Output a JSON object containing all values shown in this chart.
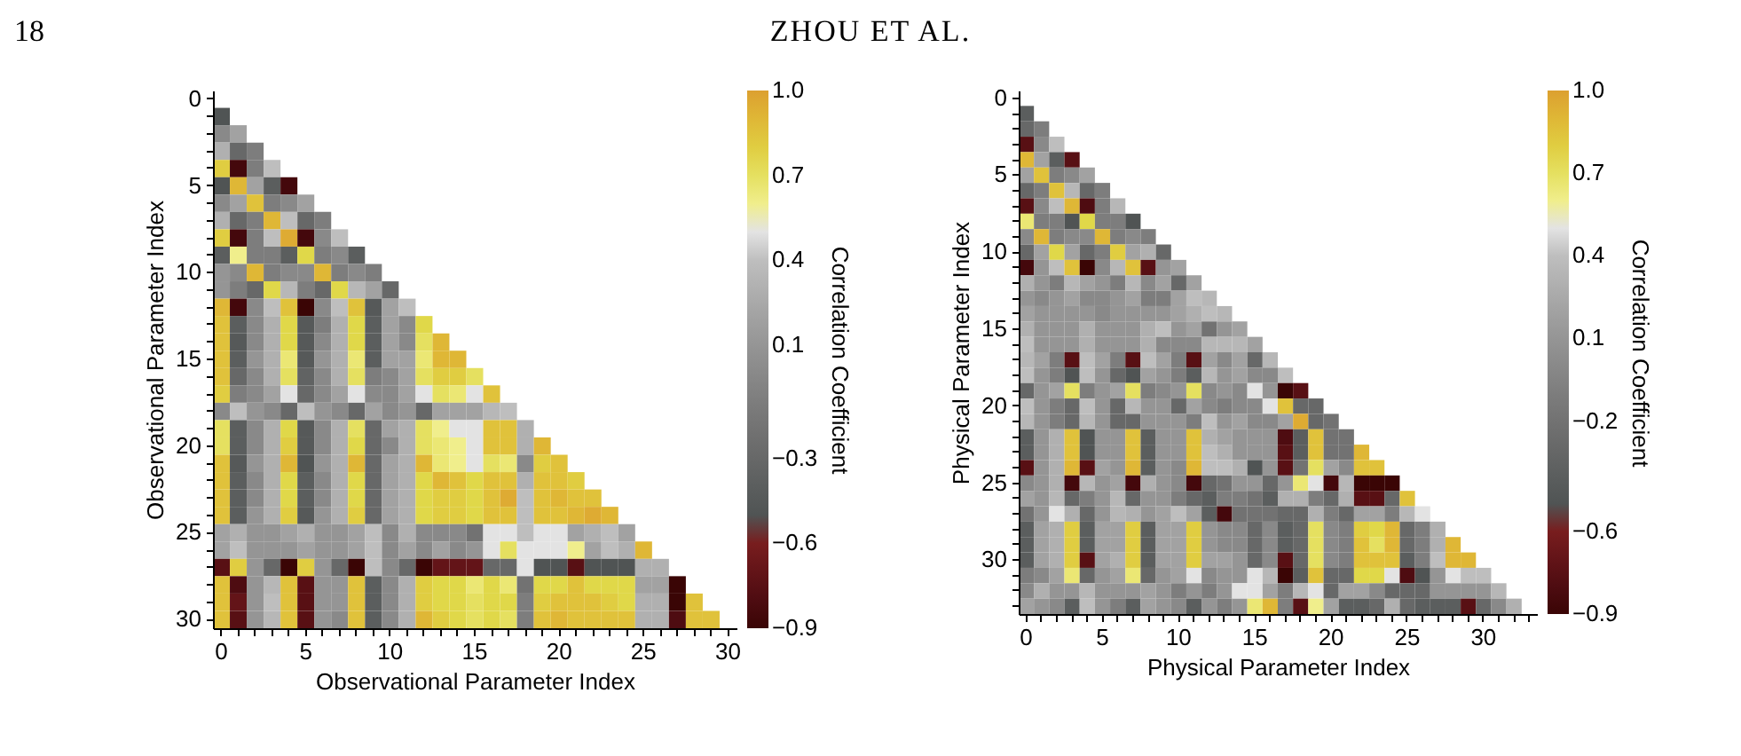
{
  "chart_data": [
    {
      "type": "heatmap",
      "annotations": [
        "18",
        "ZHOU ET AL."
      ],
      "xlabel": "Observational Parameter Index",
      "ylabel": "Observational Parameter Index",
      "clabel": "Correlation Coefficient",
      "clim": [
        -0.9,
        1.0
      ],
      "cticks": [
        -0.9,
        -0.6,
        -0.3,
        0.1,
        0.4,
        0.7,
        {
          "value": 1.0,
          "label": "1.0"
        }
      ],
      "categories": [
        "0",
        null,
        null,
        null,
        null,
        "5",
        null,
        null,
        null,
        null,
        "10",
        null,
        null,
        null,
        null,
        "15",
        null,
        null,
        null,
        null,
        "20",
        null,
        null,
        null,
        null,
        "25",
        null,
        null,
        null,
        null,
        "30"
      ],
      "y_categories": [
        "0",
        null,
        null,
        null,
        null,
        "5",
        null,
        null,
        null,
        null,
        "10",
        null,
        null,
        null,
        null,
        "15",
        null,
        null,
        null,
        null,
        "20",
        null,
        null,
        null,
        null,
        "25",
        null,
        null,
        null,
        null,
        "30"
      ],
      "cells": [
        [
          null,
          null,
          null,
          null,
          null,
          null,
          null,
          null,
          null,
          null,
          null,
          null,
          null,
          null,
          null,
          null,
          null,
          null,
          null,
          null,
          null,
          null,
          null,
          null,
          null,
          null,
          null,
          null,
          null,
          null,
          null
        ],
        [
          -0.5,
          null,
          null,
          null,
          null,
          null,
          null,
          null,
          null,
          null,
          null,
          null,
          null,
          null,
          null,
          null,
          null,
          null,
          null,
          null,
          null,
          null,
          null,
          null,
          null,
          null,
          null,
          null,
          null,
          null,
          null
        ],
        [
          0.0,
          0.2,
          null,
          null,
          null,
          null,
          null,
          null,
          null,
          null,
          null,
          null,
          null,
          null,
          null,
          null,
          null,
          null,
          null,
          null,
          null,
          null,
          null,
          null,
          null,
          null,
          null,
          null,
          null,
          null,
          null
        ],
        [
          0.3,
          -0.3,
          -0.1,
          null,
          null,
          null,
          null,
          null,
          null,
          null,
          null,
          null,
          null,
          null,
          null,
          null,
          null,
          null,
          null,
          null,
          null,
          null,
          null,
          null,
          null,
          null,
          null,
          null,
          null,
          null,
          null
        ],
        [
          0.8,
          -0.85,
          -0.1,
          0.4,
          null,
          null,
          null,
          null,
          null,
          null,
          null,
          null,
          null,
          null,
          null,
          null,
          null,
          null,
          null,
          null,
          null,
          null,
          null,
          null,
          null,
          null,
          null,
          null,
          null,
          null,
          null
        ],
        [
          -0.5,
          0.9,
          0.2,
          -0.4,
          -0.85,
          null,
          null,
          null,
          null,
          null,
          null,
          null,
          null,
          null,
          null,
          null,
          null,
          null,
          null,
          null,
          null,
          null,
          null,
          null,
          null,
          null,
          null,
          null,
          null,
          null,
          null
        ],
        [
          0.0,
          0.2,
          0.85,
          -0.1,
          0.0,
          0.2,
          null,
          null,
          null,
          null,
          null,
          null,
          null,
          null,
          null,
          null,
          null,
          null,
          null,
          null,
          null,
          null,
          null,
          null,
          null,
          null,
          null,
          null,
          null,
          null,
          null
        ],
        [
          0.3,
          -0.3,
          -0.1,
          0.9,
          0.4,
          -0.3,
          -0.1,
          null,
          null,
          null,
          null,
          null,
          null,
          null,
          null,
          null,
          null,
          null,
          null,
          null,
          null,
          null,
          null,
          null,
          null,
          null,
          null,
          null,
          null,
          null,
          null
        ],
        [
          0.8,
          -0.85,
          -0.1,
          0.4,
          0.95,
          -0.85,
          0.0,
          0.4,
          null,
          null,
          null,
          null,
          null,
          null,
          null,
          null,
          null,
          null,
          null,
          null,
          null,
          null,
          null,
          null,
          null,
          null,
          null,
          null,
          null,
          null,
          null
        ],
        [
          -0.4,
          0.6,
          -0.1,
          -0.1,
          -0.4,
          0.75,
          -0.1,
          0.0,
          -0.4,
          null,
          null,
          null,
          null,
          null,
          null,
          null,
          null,
          null,
          null,
          null,
          null,
          null,
          null,
          null,
          null,
          null,
          null,
          null,
          null,
          null,
          null
        ],
        [
          0.1,
          0.0,
          0.9,
          -0.1,
          0.0,
          0.0,
          0.9,
          -0.1,
          0.0,
          -0.1,
          null,
          null,
          null,
          null,
          null,
          null,
          null,
          null,
          null,
          null,
          null,
          null,
          null,
          null,
          null,
          null,
          null,
          null,
          null,
          null,
          null
        ],
        [
          0.1,
          -0.1,
          -0.3,
          0.75,
          0.35,
          -0.1,
          -0.3,
          0.75,
          0.35,
          0.2,
          -0.3,
          null,
          null,
          null,
          null,
          null,
          null,
          null,
          null,
          null,
          null,
          null,
          null,
          null,
          null,
          null,
          null,
          null,
          null,
          null,
          null
        ],
        [
          0.9,
          -0.85,
          0.0,
          0.4,
          0.85,
          -0.9,
          0.0,
          0.4,
          0.85,
          -0.45,
          0.2,
          0.4,
          null,
          null,
          null,
          null,
          null,
          null,
          null,
          null,
          null,
          null,
          null,
          null,
          null,
          null,
          null,
          null,
          null,
          null,
          null
        ],
        [
          0.85,
          -0.4,
          0.0,
          0.3,
          0.75,
          -0.45,
          -0.1,
          0.3,
          0.75,
          -0.4,
          0.2,
          0.0,
          0.75,
          null,
          null,
          null,
          null,
          null,
          null,
          null,
          null,
          null,
          null,
          null,
          null,
          null,
          null,
          null,
          null,
          null,
          null
        ],
        [
          0.85,
          -0.45,
          0.0,
          0.3,
          0.75,
          -0.45,
          0.0,
          0.3,
          0.75,
          -0.4,
          0.2,
          0.0,
          0.7,
          0.9,
          null,
          null,
          null,
          null,
          null,
          null,
          null,
          null,
          null,
          null,
          null,
          null,
          null,
          null,
          null,
          null,
          null
        ],
        [
          0.85,
          -0.4,
          0.1,
          0.3,
          0.65,
          -0.45,
          0.1,
          0.3,
          0.65,
          -0.4,
          0.2,
          0.2,
          0.65,
          0.9,
          0.9,
          null,
          null,
          null,
          null,
          null,
          null,
          null,
          null,
          null,
          null,
          null,
          null,
          null,
          null,
          null,
          null
        ],
        [
          0.85,
          -0.3,
          0.0,
          0.3,
          0.7,
          -0.35,
          0.0,
          0.3,
          0.7,
          -0.1,
          0.0,
          0.2,
          0.7,
          0.8,
          0.8,
          0.7,
          null,
          null,
          null,
          null,
          null,
          null,
          null,
          null,
          null,
          null,
          null,
          null,
          null,
          null,
          null
        ],
        [
          0.8,
          -0.1,
          0.0,
          0.2,
          0.5,
          -0.3,
          0.0,
          0.2,
          0.5,
          0.0,
          0.0,
          0.2,
          0.5,
          0.7,
          0.65,
          0.5,
          0.85,
          null,
          null,
          null,
          null,
          null,
          null,
          null,
          null,
          null,
          null,
          null,
          null,
          null,
          null
        ],
        [
          0.0,
          0.4,
          0.1,
          0.0,
          -0.3,
          0.4,
          0.1,
          0.0,
          -0.3,
          0.2,
          0.0,
          0.1,
          -0.3,
          0.2,
          0.2,
          0.2,
          0.35,
          0.4,
          null,
          null,
          null,
          null,
          null,
          null,
          null,
          null,
          null,
          null,
          null,
          null,
          null
        ],
        [
          0.7,
          -0.4,
          0.0,
          0.3,
          0.75,
          -0.45,
          0.0,
          0.3,
          0.7,
          -0.3,
          0.2,
          0.3,
          0.7,
          0.6,
          0.5,
          0.5,
          0.85,
          0.85,
          0.3,
          null,
          null,
          null,
          null,
          null,
          null,
          null,
          null,
          null,
          null,
          null,
          null
        ],
        [
          0.7,
          -0.4,
          0.0,
          0.3,
          0.8,
          -0.45,
          0.0,
          0.3,
          0.75,
          -0.3,
          0.0,
          0.3,
          0.7,
          0.65,
          0.6,
          0.5,
          0.85,
          0.85,
          0.3,
          0.9,
          null,
          null,
          null,
          null,
          null,
          null,
          null,
          null,
          null,
          null,
          null
        ],
        [
          0.85,
          -0.45,
          0.1,
          0.3,
          0.9,
          -0.5,
          0.1,
          0.3,
          0.9,
          -0.3,
          0.2,
          0.3,
          0.9,
          0.65,
          0.6,
          0.5,
          0.7,
          0.65,
          0.0,
          0.8,
          0.85,
          null,
          null,
          null,
          null,
          null,
          null,
          null,
          null,
          null,
          null
        ],
        [
          0.85,
          -0.4,
          0.0,
          0.3,
          0.75,
          -0.4,
          0.0,
          0.3,
          0.75,
          -0.3,
          0.2,
          0.3,
          0.75,
          0.9,
          0.85,
          0.75,
          0.85,
          0.85,
          0.3,
          0.85,
          0.85,
          0.8,
          null,
          null,
          null,
          null,
          null,
          null,
          null,
          null,
          null
        ],
        [
          0.85,
          -0.4,
          0.0,
          0.3,
          0.75,
          -0.4,
          0.0,
          0.3,
          0.75,
          -0.3,
          0.2,
          0.3,
          0.75,
          0.8,
          0.8,
          0.75,
          0.85,
          0.95,
          0.4,
          0.85,
          0.9,
          0.85,
          0.85,
          null,
          null,
          null,
          null,
          null,
          null,
          null,
          null
        ],
        [
          0.85,
          -0.4,
          0.1,
          0.3,
          0.8,
          -0.45,
          0.1,
          0.3,
          0.8,
          -0.3,
          0.2,
          0.3,
          0.75,
          0.8,
          0.8,
          0.75,
          0.85,
          0.85,
          0.4,
          0.85,
          0.85,
          0.9,
          0.95,
          0.9,
          null,
          null,
          null,
          null,
          null,
          null,
          null
        ],
        [
          0.2,
          0.3,
          0.1,
          0.1,
          0.2,
          0.3,
          0.1,
          0.1,
          0.2,
          0.4,
          0.0,
          0.3,
          0.0,
          0.0,
          0.0,
          -0.2,
          0.5,
          0.5,
          0.4,
          0.5,
          0.5,
          0.2,
          0.3,
          0.4,
          0.2,
          null,
          null,
          null,
          null,
          null,
          null
        ],
        [
          0.2,
          0.4,
          0.1,
          0.1,
          0.1,
          0.2,
          0.1,
          0.1,
          0.2,
          0.4,
          0.0,
          0.2,
          0.0,
          0.2,
          0.0,
          0.1,
          0.5,
          0.7,
          0.5,
          0.5,
          0.5,
          0.6,
          0.2,
          0.4,
          0.3,
          0.9,
          null,
          null,
          null,
          null,
          null
        ],
        [
          -0.75,
          0.8,
          0.1,
          -0.3,
          -0.9,
          0.8,
          0.1,
          -0.3,
          -0.9,
          0.4,
          0.0,
          -0.3,
          -0.9,
          -0.7,
          -0.7,
          -0.7,
          -0.3,
          -0.3,
          0.5,
          -0.5,
          -0.5,
          -0.75,
          -0.5,
          -0.5,
          -0.5,
          0.3,
          0.3,
          null,
          null,
          null,
          null
        ],
        [
          0.85,
          -0.8,
          0.1,
          0.35,
          0.85,
          -0.75,
          0.1,
          0.1,
          0.85,
          -0.4,
          0.0,
          0.3,
          0.8,
          0.75,
          0.75,
          0.65,
          0.75,
          0.65,
          -0.2,
          0.75,
          0.75,
          0.85,
          0.75,
          0.75,
          0.75,
          0.2,
          0.2,
          -0.9,
          null,
          null,
          null
        ],
        [
          0.85,
          -0.7,
          0.1,
          0.4,
          0.85,
          -0.75,
          0.1,
          0.1,
          0.85,
          -0.4,
          0.0,
          0.3,
          0.8,
          0.75,
          0.75,
          0.7,
          0.75,
          0.75,
          -0.1,
          0.8,
          0.85,
          0.85,
          0.85,
          0.8,
          0.75,
          0.3,
          0.3,
          -0.9,
          0.85,
          null,
          null
        ],
        [
          0.85,
          -0.75,
          0.1,
          0.35,
          0.85,
          -0.75,
          0.1,
          0.0,
          0.85,
          -0.4,
          0.0,
          0.3,
          0.9,
          0.8,
          0.75,
          0.7,
          0.75,
          0.7,
          -0.1,
          0.85,
          0.9,
          0.85,
          0.85,
          0.85,
          0.85,
          0.3,
          0.3,
          -0.8,
          0.85,
          0.85,
          null
        ]
      ]
    },
    {
      "type": "heatmap",
      "xlabel": "Physical Parameter Index",
      "ylabel": "Physical Parameter Index",
      "clabel": "Correlation Coefficient",
      "clim": [
        -0.9,
        1.0
      ],
      "cticks": [
        -0.9,
        -0.6,
        -0.2,
        0.1,
        0.4,
        0.7,
        {
          "value": 1.0,
          "label": "1.0"
        }
      ],
      "categories": [
        "0",
        null,
        null,
        null,
        null,
        "5",
        null,
        null,
        null,
        null,
        "10",
        null,
        null,
        null,
        null,
        "15",
        null,
        null,
        null,
        null,
        "20",
        null,
        null,
        null,
        null,
        "25",
        null,
        null,
        null,
        null,
        "30",
        null,
        null,
        null
      ],
      "y_categories": [
        "0",
        null,
        null,
        null,
        null,
        "5",
        null,
        null,
        null,
        null,
        "10",
        null,
        null,
        null,
        null,
        "15",
        null,
        null,
        null,
        null,
        "20",
        null,
        null,
        null,
        null,
        "25",
        null,
        null,
        null,
        null,
        "30",
        null,
        null,
        null
      ],
      "cells": [
        [
          null,
          null,
          null,
          null,
          null,
          null,
          null,
          null,
          null,
          null,
          null,
          null,
          null,
          null,
          null,
          null,
          null,
          null,
          null,
          null,
          null,
          null,
          null,
          null,
          null,
          null,
          null,
          null,
          null,
          null,
          null,
          null,
          null,
          null
        ],
        [
          -0.4,
          null,
          null,
          null,
          null,
          null,
          null,
          null,
          null,
          null,
          null,
          null,
          null,
          null,
          null,
          null,
          null,
          null,
          null,
          null,
          null,
          null,
          null,
          null,
          null,
          null,
          null,
          null,
          null,
          null,
          null,
          null,
          null,
          null
        ],
        [
          -0.3,
          -0.1,
          null,
          null,
          null,
          null,
          null,
          null,
          null,
          null,
          null,
          null,
          null,
          null,
          null,
          null,
          null,
          null,
          null,
          null,
          null,
          null,
          null,
          null,
          null,
          null,
          null,
          null,
          null,
          null,
          null,
          null,
          null,
          null
        ],
        [
          -0.75,
          0.0,
          0.4,
          null,
          null,
          null,
          null,
          null,
          null,
          null,
          null,
          null,
          null,
          null,
          null,
          null,
          null,
          null,
          null,
          null,
          null,
          null,
          null,
          null,
          null,
          null,
          null,
          null,
          null,
          null,
          null,
          null,
          null,
          null
        ],
        [
          0.9,
          0.2,
          -0.4,
          -0.75,
          null,
          null,
          null,
          null,
          null,
          null,
          null,
          null,
          null,
          null,
          null,
          null,
          null,
          null,
          null,
          null,
          null,
          null,
          null,
          null,
          null,
          null,
          null,
          null,
          null,
          null,
          null,
          null,
          null,
          null
        ],
        [
          0.2,
          0.85,
          -0.1,
          0.0,
          0.2,
          null,
          null,
          null,
          null,
          null,
          null,
          null,
          null,
          null,
          null,
          null,
          null,
          null,
          null,
          null,
          null,
          null,
          null,
          null,
          null,
          null,
          null,
          null,
          null,
          null,
          null,
          null,
          null,
          null
        ],
        [
          -0.3,
          -0.1,
          0.85,
          0.35,
          -0.3,
          -0.1,
          null,
          null,
          null,
          null,
          null,
          null,
          null,
          null,
          null,
          null,
          null,
          null,
          null,
          null,
          null,
          null,
          null,
          null,
          null,
          null,
          null,
          null,
          null,
          null,
          null,
          null,
          null,
          null
        ],
        [
          -0.75,
          0.0,
          0.4,
          0.9,
          -0.8,
          -0.1,
          0.35,
          null,
          null,
          null,
          null,
          null,
          null,
          null,
          null,
          null,
          null,
          null,
          null,
          null,
          null,
          null,
          null,
          null,
          null,
          null,
          null,
          null,
          null,
          null,
          null,
          null,
          null,
          null
        ],
        [
          0.65,
          -0.1,
          -0.1,
          -0.5,
          0.75,
          -0.1,
          -0.1,
          -0.5,
          null,
          null,
          null,
          null,
          null,
          null,
          null,
          null,
          null,
          null,
          null,
          null,
          null,
          null,
          null,
          null,
          null,
          null,
          null,
          null,
          null,
          null,
          null,
          null,
          null,
          null
        ],
        [
          0.0,
          0.9,
          -0.1,
          0.0,
          0.0,
          0.9,
          -0.1,
          0.0,
          -0.1,
          null,
          null,
          null,
          null,
          null,
          null,
          null,
          null,
          null,
          null,
          null,
          null,
          null,
          null,
          null,
          null,
          null,
          null,
          null,
          null,
          null,
          null,
          null,
          null,
          null
        ],
        [
          -0.3,
          0.2,
          0.75,
          0.2,
          -0.3,
          -0.1,
          0.8,
          0.2,
          0.3,
          -0.3,
          null,
          null,
          null,
          null,
          null,
          null,
          null,
          null,
          null,
          null,
          null,
          null,
          null,
          null,
          null,
          null,
          null,
          null,
          null,
          null,
          null,
          null,
          null,
          null
        ],
        [
          -0.85,
          0.1,
          0.4,
          0.85,
          -0.9,
          0.0,
          0.35,
          0.85,
          -0.75,
          0.1,
          0.2,
          null,
          null,
          null,
          null,
          null,
          null,
          null,
          null,
          null,
          null,
          null,
          null,
          null,
          null,
          null,
          null,
          null,
          null,
          null,
          null,
          null,
          null,
          null
        ],
        [
          0.3,
          0.1,
          -0.1,
          0.35,
          0.2,
          0.1,
          -0.1,
          0.35,
          0.0,
          0.2,
          -0.3,
          0.2,
          null,
          null,
          null,
          null,
          null,
          null,
          null,
          null,
          null,
          null,
          null,
          null,
          null,
          null,
          null,
          null,
          null,
          null,
          null,
          null,
          null,
          null
        ],
        [
          0.1,
          0.0,
          0.1,
          0.2,
          0.0,
          0.0,
          0.1,
          0.2,
          -0.1,
          -0.1,
          0.2,
          0.4,
          0.35,
          null,
          null,
          null,
          null,
          null,
          null,
          null,
          null,
          null,
          null,
          null,
          null,
          null,
          null,
          null,
          null,
          null,
          null,
          null,
          null,
          null
        ],
        [
          0.2,
          0.1,
          0.1,
          0.1,
          0.1,
          0.0,
          0.1,
          0.1,
          0.1,
          0.1,
          0.2,
          0.3,
          0.4,
          0.35,
          null,
          null,
          null,
          null,
          null,
          null,
          null,
          null,
          null,
          null,
          null,
          null,
          null,
          null,
          null,
          null,
          null,
          null,
          null,
          null
        ],
        [
          0.3,
          0.1,
          0.1,
          0.1,
          0.3,
          0.1,
          0.1,
          0.1,
          0.3,
          0.4,
          0.1,
          0.2,
          -0.2,
          0.1,
          0.2,
          null,
          null,
          null,
          null,
          null,
          null,
          null,
          null,
          null,
          null,
          null,
          null,
          null,
          null,
          null,
          null,
          null,
          null,
          null
        ],
        [
          0.4,
          0.1,
          0.1,
          0.1,
          0.3,
          0.1,
          0.1,
          0.1,
          0.3,
          0.0,
          0.0,
          0.0,
          0.35,
          0.35,
          0.35,
          0.2,
          null,
          null,
          null,
          null,
          null,
          null,
          null,
          null,
          null,
          null,
          null,
          null,
          null,
          null,
          null,
          null,
          null,
          null
        ],
        [
          0.35,
          0.2,
          -0.1,
          -0.75,
          0.4,
          0.2,
          -0.1,
          -0.75,
          0.4,
          0.2,
          -0.1,
          -0.75,
          0.2,
          0.0,
          0.2,
          -0.3,
          0.35,
          null,
          null,
          null,
          null,
          null,
          null,
          null,
          null,
          null,
          null,
          null,
          null,
          null,
          null,
          null,
          null,
          null
        ],
        [
          0.4,
          0.1,
          -0.1,
          -0.5,
          0.4,
          0.1,
          -0.3,
          -0.5,
          0.2,
          0.1,
          -0.1,
          -0.4,
          0.35,
          0.1,
          0.2,
          0.0,
          0.0,
          0.4,
          null,
          null,
          null,
          null,
          null,
          null,
          null,
          null,
          null,
          null,
          null,
          null,
          null,
          null,
          null,
          null
        ],
        [
          -0.3,
          0.1,
          0.2,
          0.7,
          -0.1,
          0.1,
          0.2,
          0.7,
          -0.1,
          0.0,
          0.1,
          0.7,
          0.0,
          0.1,
          0.0,
          0.5,
          0.1,
          -0.9,
          -0.75,
          null,
          null,
          null,
          null,
          null,
          null,
          null,
          null,
          null,
          null,
          null,
          null,
          null,
          null,
          null
        ],
        [
          0.4,
          0.1,
          -0.1,
          -0.3,
          0.4,
          0.1,
          -0.3,
          0.35,
          0.1,
          0.1,
          -0.3,
          0.2,
          0.0,
          -0.1,
          0.0,
          0.0,
          0.5,
          0.85,
          -0.3,
          -0.3,
          null,
          null,
          null,
          null,
          null,
          null,
          null,
          null,
          null,
          null,
          null,
          null,
          null,
          null
        ],
        [
          0.35,
          0.1,
          -0.1,
          -0.3,
          0.35,
          0.1,
          -0.3,
          -0.3,
          0.1,
          0.1,
          0.1,
          -0.1,
          0.4,
          0.1,
          0.2,
          0.0,
          0.0,
          0.2,
          0.95,
          -0.3,
          -0.2,
          null,
          null,
          null,
          null,
          null,
          null,
          null,
          null,
          null,
          null,
          null,
          null,
          null
        ],
        [
          -0.4,
          0.1,
          0.3,
          0.85,
          -0.5,
          0.1,
          0.1,
          0.85,
          -0.4,
          0.1,
          0.1,
          0.85,
          0.3,
          0.2,
          0.1,
          0.1,
          0.1,
          -0.8,
          -0.4,
          0.85,
          -0.2,
          -0.2,
          null,
          null,
          null,
          null,
          null,
          null,
          null,
          null,
          null,
          null,
          null,
          null
        ],
        [
          -0.4,
          0.1,
          0.3,
          0.85,
          -0.5,
          0.1,
          0.1,
          0.85,
          -0.4,
          0.1,
          0.1,
          0.85,
          0.4,
          0.3,
          0.1,
          0.1,
          0.1,
          -0.75,
          -0.4,
          0.85,
          -0.2,
          -0.2,
          0.9,
          null,
          null,
          null,
          null,
          null,
          null,
          null,
          null,
          null,
          null,
          null
        ],
        [
          -0.75,
          0.1,
          0.3,
          0.9,
          -0.75,
          0.2,
          0.1,
          0.9,
          -0.4,
          0.1,
          0.0,
          0.9,
          0.4,
          0.4,
          0.3,
          -0.5,
          0.1,
          -0.75,
          -0.2,
          0.7,
          0.2,
          0.0,
          0.85,
          0.85,
          null,
          null,
          null,
          null,
          null,
          null,
          null,
          null,
          null,
          null
        ],
        [
          0.0,
          0.1,
          0.3,
          -0.85,
          0.35,
          0.1,
          0.2,
          -0.85,
          0.3,
          0.1,
          0.0,
          -0.85,
          -0.3,
          -0.2,
          0.1,
          0.1,
          -0.3,
          0.1,
          0.65,
          0.5,
          -0.85,
          0.35,
          -0.9,
          -0.9,
          -0.9,
          null,
          null,
          null,
          null,
          null,
          null,
          null,
          null,
          null
        ],
        [
          0.2,
          0.1,
          0.35,
          -0.3,
          -0.1,
          0.1,
          0.35,
          -0.3,
          0.1,
          0.1,
          -0.1,
          -0.3,
          -0.4,
          -0.1,
          -0.1,
          -0.2,
          -0.4,
          0.3,
          0.3,
          -0.1,
          -0.3,
          0.3,
          -0.75,
          -0.75,
          -0.3,
          0.85,
          null,
          null,
          null,
          null,
          null,
          null,
          null,
          null
        ],
        [
          -0.2,
          0.1,
          0.5,
          0.3,
          -0.3,
          0.1,
          0.35,
          0.3,
          0.1,
          0.2,
          0.4,
          0.2,
          -0.4,
          -0.85,
          -0.2,
          -0.2,
          -0.2,
          -0.3,
          -0.3,
          0.3,
          -0.1,
          -0.3,
          0.2,
          0.2,
          -0.1,
          0.35,
          0.5,
          null,
          null,
          null,
          null,
          null,
          null,
          null
        ],
        [
          -0.4,
          0.2,
          0.3,
          0.8,
          -0.4,
          0.2,
          0.2,
          0.8,
          -0.4,
          0.2,
          0.2,
          0.8,
          0.1,
          0.0,
          0.0,
          -0.3,
          0.0,
          -0.4,
          -0.3,
          0.7,
          0.0,
          -0.1,
          0.8,
          0.75,
          0.9,
          -0.3,
          -0.1,
          0.3,
          null,
          null,
          null,
          null,
          null,
          null
        ],
        [
          -0.4,
          0.2,
          0.3,
          0.8,
          -0.4,
          0.2,
          0.2,
          0.8,
          -0.4,
          0.2,
          0.2,
          0.8,
          0.1,
          0.0,
          0.0,
          -0.3,
          0.0,
          -0.4,
          -0.3,
          0.7,
          0.0,
          -0.1,
          0.85,
          0.7,
          0.9,
          -0.3,
          -0.1,
          0.3,
          0.9,
          null,
          null,
          null,
          null,
          null
        ],
        [
          -0.4,
          0.2,
          0.3,
          0.8,
          -0.75,
          0.2,
          0.3,
          0.8,
          -0.4,
          0.2,
          0.2,
          0.8,
          0.2,
          0.2,
          0.1,
          -0.3,
          0.0,
          -0.75,
          -0.3,
          0.7,
          0.0,
          -0.1,
          0.85,
          0.85,
          0.85,
          -0.4,
          -0.1,
          0.4,
          0.9,
          0.9,
          null,
          null,
          null,
          null
        ],
        [
          -0.1,
          0.0,
          0.2,
          0.65,
          -0.3,
          0.1,
          0.2,
          0.65,
          -0.3,
          0.1,
          0.2,
          0.5,
          0.0,
          0.1,
          0.1,
          0.5,
          0.35,
          -0.9,
          -0.4,
          0.85,
          -0.3,
          -0.3,
          0.75,
          0.75,
          0.5,
          -0.8,
          -0.5,
          0.1,
          0.5,
          0.4,
          0.4,
          null,
          null,
          null
        ],
        [
          0.0,
          0.3,
          0.1,
          0.1,
          0.35,
          0.1,
          0.1,
          0.1,
          0.2,
          0.1,
          -0.1,
          0.1,
          -0.1,
          0.1,
          0.5,
          0.5,
          0.2,
          -0.1,
          0.35,
          0.5,
          -0.3,
          0.2,
          0.2,
          0.0,
          -0.3,
          -0.3,
          -0.3,
          0.1,
          0.1,
          0.1,
          0.1,
          0.35,
          null,
          null
        ],
        [
          0.2,
          0.1,
          0.0,
          -0.4,
          0.4,
          0.1,
          -0.1,
          -0.4,
          0.2,
          0.1,
          0.0,
          -0.4,
          0.1,
          -0.1,
          0.1,
          0.65,
          0.9,
          -0.1,
          -0.75,
          0.6,
          0.2,
          -0.4,
          -0.4,
          -0.3,
          0.3,
          -0.3,
          -0.4,
          -0.4,
          -0.4,
          -0.75,
          -0.3,
          0.0,
          0.3,
          null
        ]
      ]
    }
  ]
}
